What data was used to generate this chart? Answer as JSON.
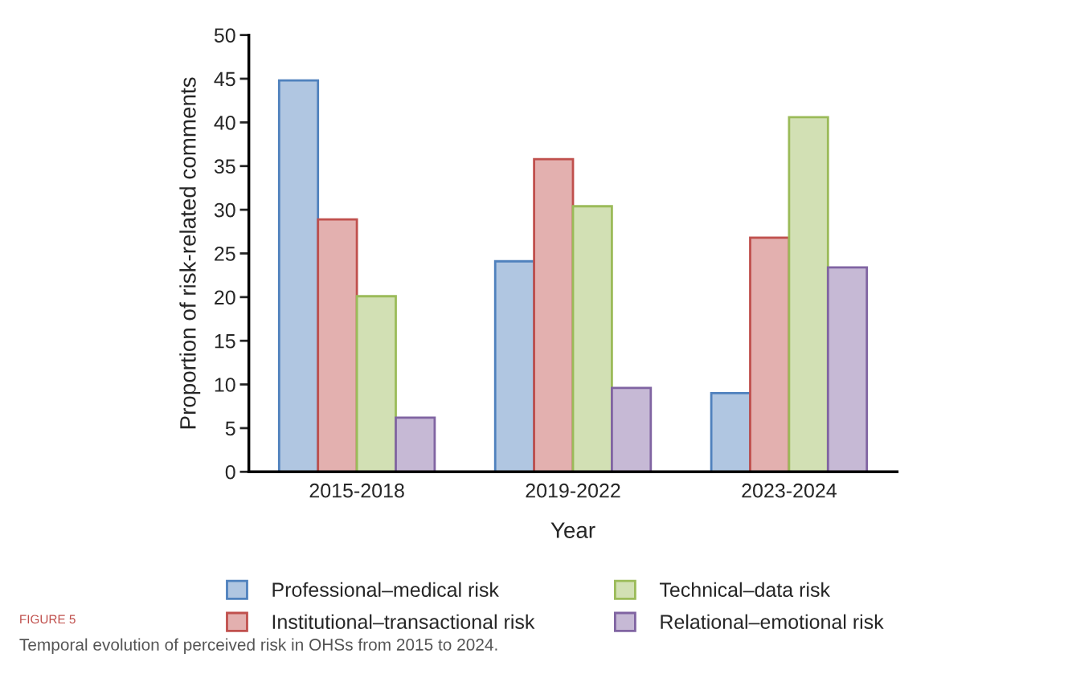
{
  "chart_data": {
    "type": "bar",
    "xlabel": "Year",
    "ylabel": "Proportion of risk-related comments",
    "categories": [
      "2015-2018",
      "2019-2022",
      "2023-2024"
    ],
    "series": [
      {
        "name": "Professional–medical risk",
        "color": "#4f81bd",
        "values": [
          44.8,
          24.1,
          9.0
        ]
      },
      {
        "name": "Institutional–transactional risk",
        "color": "#c0504d",
        "values": [
          28.9,
          35.8,
          26.8
        ]
      },
      {
        "name": "Technical–data risk",
        "color": "#9bbb59",
        "values": [
          20.1,
          30.4,
          40.6
        ]
      },
      {
        "name": "Relational–emotional risk",
        "color": "#8064a2",
        "values": [
          6.2,
          9.6,
          23.4
        ]
      }
    ],
    "ylim": [
      0,
      50
    ],
    "yticks": [
      0,
      5,
      10,
      15,
      20,
      25,
      30,
      35,
      40,
      45,
      50
    ],
    "grid": false,
    "legend": "bottom",
    "annotations": [
      "FIGURE 5",
      "Temporal evolution of perceived risk in OHSs from 2015 to 2024."
    ]
  }
}
